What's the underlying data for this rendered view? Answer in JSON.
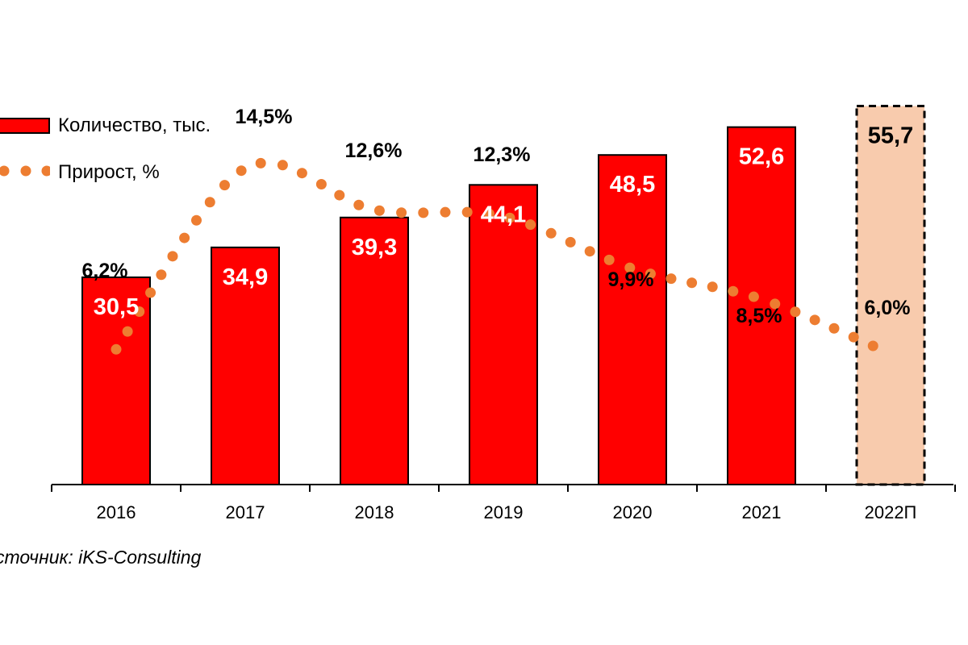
{
  "chart_data": {
    "type": "bar",
    "categories": [
      "2016",
      "2017",
      "2018",
      "2019",
      "2020",
      "2021",
      "2022П"
    ],
    "series": [
      {
        "name": "Количество, тыс.",
        "type": "bar",
        "values": [
          30.5,
          34.9,
          39.3,
          44.1,
          48.5,
          52.6,
          55.7
        ],
        "labels": [
          "30,5",
          "34,9",
          "39,3",
          "44,1",
          "48,5",
          "52,6",
          "55,7"
        ],
        "forecast_index": 6
      },
      {
        "name": "Прирост, %",
        "type": "line",
        "style": "dotted",
        "values": [
          6.2,
          14.5,
          12.6,
          12.3,
          9.9,
          8.5,
          6.0
        ],
        "labels": [
          "6,2%",
          "14,5%",
          "12,6%",
          "12,3%",
          "9,9%",
          "8,5%",
          "6,0%"
        ]
      }
    ],
    "colors": {
      "bar": "#ff0000",
      "forecast_bar": "#f8cbad",
      "line": "#ed7d31"
    },
    "ylim": [
      0,
      70
    ],
    "y2lim": [
      0,
      20
    ],
    "legend_position": "top-left"
  },
  "source": "сточник: iKS-Consulting"
}
